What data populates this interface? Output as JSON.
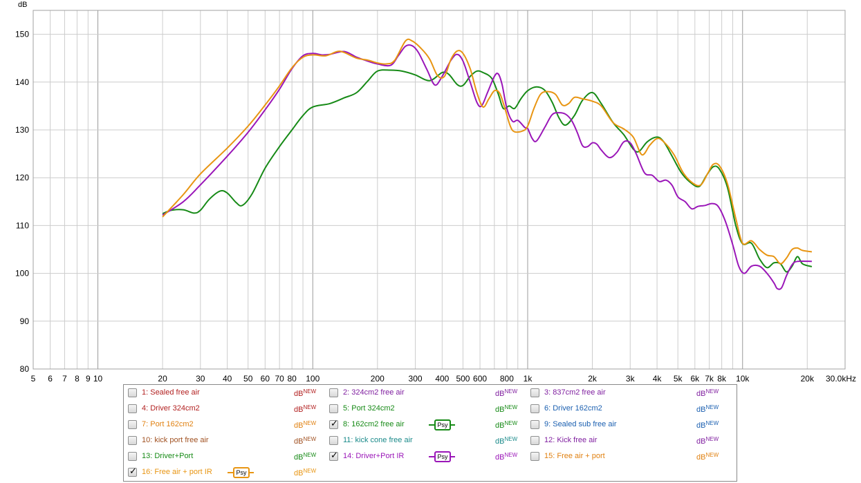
{
  "chart_data": {
    "type": "line",
    "title": "",
    "ylabel": "dB",
    "xscale": "log",
    "xlim": [
      5,
      30000
    ],
    "ylim": [
      80,
      155
    ],
    "grid": true,
    "x_ticks": [
      {
        "value": 5,
        "label": "5"
      },
      {
        "value": 6,
        "label": "6"
      },
      {
        "value": 7,
        "label": "7"
      },
      {
        "value": 8,
        "label": "8"
      },
      {
        "value": 9,
        "label": "9"
      },
      {
        "value": 10,
        "label": "10"
      },
      {
        "value": 20,
        "label": "20"
      },
      {
        "value": 30,
        "label": "30"
      },
      {
        "value": 40,
        "label": "40"
      },
      {
        "value": 50,
        "label": "50"
      },
      {
        "value": 60,
        "label": "60"
      },
      {
        "value": 70,
        "label": "70"
      },
      {
        "value": 80,
        "label": "80"
      },
      {
        "value": 100,
        "label": "100"
      },
      {
        "value": 200,
        "label": "200"
      },
      {
        "value": 300,
        "label": "300"
      },
      {
        "value": 400,
        "label": "400"
      },
      {
        "value": 500,
        "label": "500"
      },
      {
        "value": 600,
        "label": "600"
      },
      {
        "value": 800,
        "label": "800"
      },
      {
        "value": 1000,
        "label": "1k"
      },
      {
        "value": 2000,
        "label": "2k"
      },
      {
        "value": 3000,
        "label": "3k"
      },
      {
        "value": 4000,
        "label": "4k"
      },
      {
        "value": 5000,
        "label": "5k"
      },
      {
        "value": 6000,
        "label": "6k"
      },
      {
        "value": 7000,
        "label": "7k"
      },
      {
        "value": 8000,
        "label": "8k"
      },
      {
        "value": 10000,
        "label": "10k"
      },
      {
        "value": 20000,
        "label": "20k"
      },
      {
        "value": 30000,
        "label": "30.0kHz"
      }
    ],
    "y_ticks": [
      80,
      90,
      100,
      110,
      120,
      130,
      140,
      150
    ],
    "series": [
      {
        "name": "8: 162cm2 free air",
        "color": "#168a16",
        "points": [
          [
            20,
            112.5
          ],
          [
            22,
            113.2
          ],
          [
            25,
            113.3
          ],
          [
            28,
            112.6
          ],
          [
            30,
            113.2
          ],
          [
            33,
            115.5
          ],
          [
            37,
            117.2
          ],
          [
            40,
            116.8
          ],
          [
            44,
            114.8
          ],
          [
            47,
            114.2
          ],
          [
            52,
            116.5
          ],
          [
            60,
            122
          ],
          [
            70,
            126.5
          ],
          [
            80,
            130
          ],
          [
            90,
            133
          ],
          [
            100,
            134.8
          ],
          [
            120,
            135.5
          ],
          [
            140,
            136.7
          ],
          [
            160,
            137.8
          ],
          [
            180,
            140.2
          ],
          [
            200,
            142.3
          ],
          [
            230,
            142.5
          ],
          [
            260,
            142.3
          ],
          [
            300,
            141.5
          ],
          [
            350,
            140.3
          ],
          [
            400,
            142
          ],
          [
            430,
            141.6
          ],
          [
            470,
            139.5
          ],
          [
            500,
            139.3
          ],
          [
            540,
            141.2
          ],
          [
            580,
            142.3
          ],
          [
            620,
            142.0
          ],
          [
            680,
            140.8
          ],
          [
            730,
            137.5
          ],
          [
            770,
            134.5
          ],
          [
            820,
            135.0
          ],
          [
            870,
            134.5
          ],
          [
            930,
            136.5
          ],
          [
            1000,
            138.2
          ],
          [
            1100,
            139
          ],
          [
            1200,
            138.3
          ],
          [
            1300,
            135.8
          ],
          [
            1400,
            132.5
          ],
          [
            1500,
            131
          ],
          [
            1650,
            133
          ],
          [
            1800,
            136.2
          ],
          [
            2000,
            137.8
          ],
          [
            2200,
            135.5
          ],
          [
            2500,
            131.5
          ],
          [
            2800,
            129
          ],
          [
            3100,
            126
          ],
          [
            3300,
            125.5
          ],
          [
            3600,
            127.5
          ],
          [
            4000,
            128.5
          ],
          [
            4300,
            127.5
          ],
          [
            4700,
            124.5
          ],
          [
            5200,
            121
          ],
          [
            5800,
            118.8
          ],
          [
            6300,
            118.2
          ],
          [
            6800,
            120.5
          ],
          [
            7300,
            122.3
          ],
          [
            7800,
            121.8
          ],
          [
            8500,
            118
          ],
          [
            9300,
            110
          ],
          [
            10000,
            106.2
          ],
          [
            11000,
            106.3
          ],
          [
            12000,
            103
          ],
          [
            13000,
            101.2
          ],
          [
            14000,
            102.2
          ],
          [
            15000,
            102
          ],
          [
            16000,
            100.3
          ],
          [
            17000,
            101.5
          ],
          [
            18000,
            103.5
          ],
          [
            19000,
            102
          ],
          [
            21000,
            101.4
          ]
        ]
      },
      {
        "name": "14: Driver+Port IR",
        "color": "#9a16b8",
        "points": [
          [
            20,
            112.2
          ],
          [
            25,
            115
          ],
          [
            30,
            118.5
          ],
          [
            40,
            124.5
          ],
          [
            50,
            129.5
          ],
          [
            60,
            134.2
          ],
          [
            70,
            138.5
          ],
          [
            80,
            142.8
          ],
          [
            90,
            145.5
          ],
          [
            100,
            146
          ],
          [
            110,
            145.7
          ],
          [
            120,
            145.8
          ],
          [
            140,
            146.4
          ],
          [
            160,
            145.2
          ],
          [
            180,
            144.4
          ],
          [
            200,
            143.8
          ],
          [
            230,
            143.5
          ],
          [
            250,
            145.5
          ],
          [
            270,
            147.5
          ],
          [
            290,
            147.6
          ],
          [
            310,
            146.2
          ],
          [
            340,
            142.6
          ],
          [
            370,
            139.4
          ],
          [
            400,
            141.2
          ],
          [
            440,
            144.6
          ],
          [
            470,
            145.8
          ],
          [
            500,
            144.4
          ],
          [
            540,
            140
          ],
          [
            580,
            135.8
          ],
          [
            610,
            135
          ],
          [
            650,
            137.8
          ],
          [
            700,
            141.2
          ],
          [
            730,
            141.7
          ],
          [
            760,
            139.5
          ],
          [
            800,
            134.5
          ],
          [
            850,
            131.8
          ],
          [
            900,
            132
          ],
          [
            970,
            130.5
          ],
          [
            1000,
            130.3
          ],
          [
            1050,
            128.2
          ],
          [
            1100,
            127.7
          ],
          [
            1200,
            130.5
          ],
          [
            1300,
            133.2
          ],
          [
            1400,
            133.6
          ],
          [
            1500,
            133.3
          ],
          [
            1600,
            132
          ],
          [
            1700,
            129.5
          ],
          [
            1800,
            126.7
          ],
          [
            1900,
            126.5
          ],
          [
            2000,
            127.3
          ],
          [
            2100,
            127.0
          ],
          [
            2200,
            125.8
          ],
          [
            2400,
            124.2
          ],
          [
            2600,
            125.3
          ],
          [
            2800,
            127.5
          ],
          [
            3000,
            127.3
          ],
          [
            3200,
            125
          ],
          [
            3500,
            121
          ],
          [
            3800,
            120.5
          ],
          [
            4100,
            119.2
          ],
          [
            4400,
            119.5
          ],
          [
            4700,
            118.4
          ],
          [
            5000,
            116
          ],
          [
            5400,
            115
          ],
          [
            5800,
            113.5
          ],
          [
            6200,
            114
          ],
          [
            6700,
            114.2
          ],
          [
            7200,
            114.6
          ],
          [
            7700,
            114
          ],
          [
            8300,
            111
          ],
          [
            9000,
            106
          ],
          [
            9600,
            101.5
          ],
          [
            10200,
            100
          ],
          [
            11000,
            101.5
          ],
          [
            12000,
            101.5
          ],
          [
            13000,
            100
          ],
          [
            14000,
            98
          ],
          [
            14500,
            96.8
          ],
          [
            15200,
            97
          ],
          [
            16000,
            99.5
          ],
          [
            17000,
            101.8
          ],
          [
            18000,
            102.5
          ],
          [
            21000,
            102.5
          ]
        ]
      },
      {
        "name": "16: Free air + port IR",
        "color": "#e89512",
        "points": [
          [
            20,
            111.8
          ],
          [
            25,
            116.5
          ],
          [
            30,
            120.8
          ],
          [
            40,
            126.2
          ],
          [
            50,
            130.8
          ],
          [
            60,
            135.2
          ],
          [
            70,
            139.2
          ],
          [
            80,
            143
          ],
          [
            90,
            145.2
          ],
          [
            100,
            145.7
          ],
          [
            115,
            145.5
          ],
          [
            130,
            146.4
          ],
          [
            140,
            146.2
          ],
          [
            160,
            145
          ],
          [
            180,
            144.6
          ],
          [
            200,
            144
          ],
          [
            220,
            143.8
          ],
          [
            240,
            144.5
          ],
          [
            270,
            148.6
          ],
          [
            290,
            148.6
          ],
          [
            320,
            147
          ],
          [
            350,
            144.8
          ],
          [
            380,
            141.4
          ],
          [
            410,
            141.2
          ],
          [
            440,
            144.8
          ],
          [
            470,
            146.5
          ],
          [
            500,
            146
          ],
          [
            540,
            142.8
          ],
          [
            580,
            137.8
          ],
          [
            620,
            134.8
          ],
          [
            660,
            136.5
          ],
          [
            700,
            138.2
          ],
          [
            740,
            137.7
          ],
          [
            780,
            134.8
          ],
          [
            830,
            130.8
          ],
          [
            870,
            129.6
          ],
          [
            950,
            129.8
          ],
          [
            1000,
            130.8
          ],
          [
            1070,
            134.5
          ],
          [
            1150,
            137.5
          ],
          [
            1250,
            138
          ],
          [
            1350,
            137.4
          ],
          [
            1450,
            135.2
          ],
          [
            1550,
            135.5
          ],
          [
            1650,
            136.8
          ],
          [
            1800,
            136.5
          ],
          [
            2000,
            136.0
          ],
          [
            2200,
            135
          ],
          [
            2500,
            131.5
          ],
          [
            2800,
            130.2
          ],
          [
            3100,
            128.5
          ],
          [
            3400,
            124.8
          ],
          [
            3700,
            126.8
          ],
          [
            4000,
            128.2
          ],
          [
            4300,
            127.5
          ],
          [
            4800,
            124.8
          ],
          [
            5300,
            121
          ],
          [
            5900,
            118.8
          ],
          [
            6400,
            118.5
          ],
          [
            6900,
            121
          ],
          [
            7300,
            122.8
          ],
          [
            7800,
            122.5
          ],
          [
            8500,
            118.8
          ],
          [
            9300,
            111.5
          ],
          [
            10000,
            106.3
          ],
          [
            11000,
            106.8
          ],
          [
            12000,
            105
          ],
          [
            13000,
            103.8
          ],
          [
            14000,
            103.5
          ],
          [
            15000,
            102
          ],
          [
            16000,
            103.2
          ],
          [
            17000,
            105
          ],
          [
            18000,
            105.3
          ],
          [
            19000,
            104.8
          ],
          [
            21000,
            104.5
          ]
        ]
      }
    ]
  },
  "legend": {
    "items": [
      {
        "label": "1: Sealed free air",
        "color": "#b22020",
        "checked": false,
        "psy": false,
        "db": "dB",
        "badge": "NEW"
      },
      {
        "label": "2: 324cm2 free air",
        "color": "#8020a0",
        "checked": false,
        "psy": false,
        "db": "dB",
        "badge": "NEW"
      },
      {
        "label": "3: 837cm2 free air",
        "color": "#8020a0",
        "checked": false,
        "psy": false,
        "db": "dB",
        "badge": "NEW"
      },
      {
        "label": "4: Driver 324cm2",
        "color": "#b22020",
        "checked": false,
        "psy": false,
        "db": "dB",
        "badge": "NEW"
      },
      {
        "label": "5: Port 324cm2",
        "color": "#168a16",
        "checked": false,
        "psy": false,
        "db": "dB",
        "badge": "NEW"
      },
      {
        "label": "6: Driver 162cm2",
        "color": "#1a5fb0",
        "checked": false,
        "psy": false,
        "db": "dB",
        "badge": "NEW"
      },
      {
        "label": "7: Port 162cm2",
        "color": "#e08010",
        "checked": false,
        "psy": false,
        "db": "dB",
        "badge": "NEW"
      },
      {
        "label": "8: 162cm2 free air",
        "color": "#168a16",
        "checked": true,
        "psy": true,
        "db": "dB",
        "badge": "NEW"
      },
      {
        "label": "9: Sealed sub free air",
        "color": "#1a5fb0",
        "checked": false,
        "psy": false,
        "db": "dB",
        "badge": "NEW"
      },
      {
        "label": "10: kick port free air",
        "color": "#a05020",
        "checked": false,
        "psy": false,
        "db": "dB",
        "badge": "NEW"
      },
      {
        "label": "11: kick cone free air",
        "color": "#1a8a8a",
        "checked": false,
        "psy": false,
        "db": "dB",
        "badge": "NEW"
      },
      {
        "label": "12: Kick free air",
        "color": "#8020a0",
        "checked": false,
        "psy": false,
        "db": "dB",
        "badge": "NEW"
      },
      {
        "label": "13: Driver+Port",
        "color": "#168a16",
        "checked": false,
        "psy": false,
        "db": "dB",
        "badge": "NEW"
      },
      {
        "label": "14: Driver+Port IR",
        "color": "#9a16b8",
        "checked": true,
        "psy": true,
        "db": "dB",
        "badge": "NEW"
      },
      {
        "label": "15: Free air + port",
        "color": "#e08010",
        "checked": false,
        "psy": false,
        "db": "dB",
        "badge": "NEW"
      },
      {
        "label": "16: Free air + port IR",
        "color": "#e89512",
        "checked": true,
        "psy": true,
        "db": "dB",
        "badge": "NEW"
      }
    ],
    "psy_label": "Psy"
  }
}
